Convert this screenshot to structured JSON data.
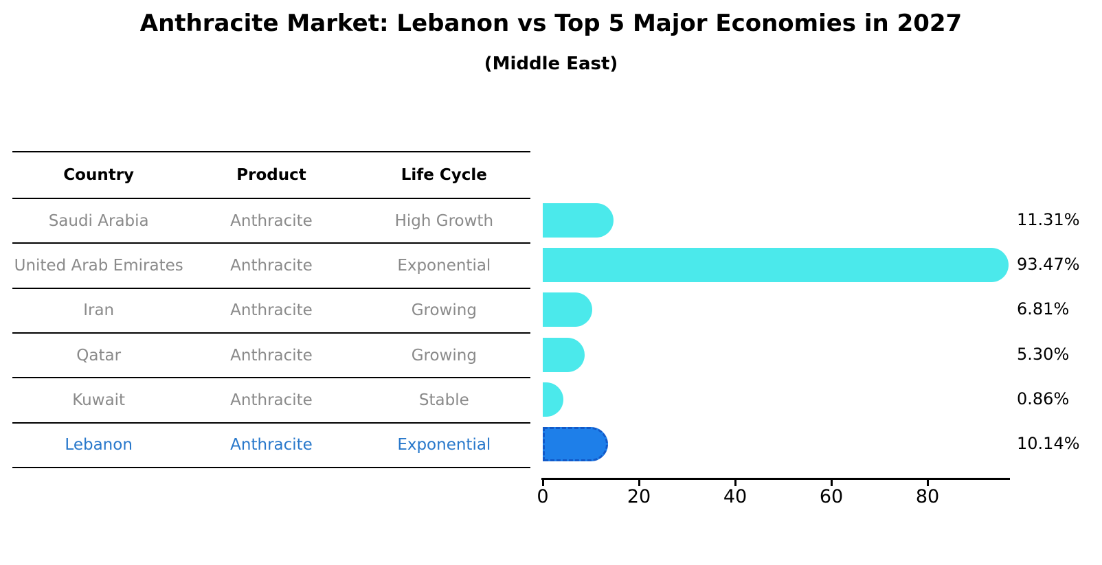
{
  "title": "Anthracite Market: Lebanon vs Top 5 Major Economies in 2027",
  "subtitle": "(Middle East)",
  "table": {
    "headers": [
      "Country",
      "Product",
      "Life Cycle"
    ],
    "rows": [
      {
        "country": "Saudi Arabia",
        "product": "Anthracite",
        "life_cycle": "High Growth",
        "highlight": false
      },
      {
        "country": "United Arab Emirates",
        "product": "Anthracite",
        "life_cycle": "Exponential",
        "highlight": false
      },
      {
        "country": "Iran",
        "product": "Anthracite",
        "life_cycle": "Growing",
        "highlight": false
      },
      {
        "country": "Qatar",
        "product": "Anthracite",
        "life_cycle": "Growing",
        "highlight": false
      },
      {
        "country": "Kuwait",
        "product": "Anthracite",
        "life_cycle": "Stable",
        "highlight": false
      },
      {
        "country": "Lebanon",
        "product": "Anthracite",
        "life_cycle": "Exponential",
        "highlight": true
      }
    ]
  },
  "chart_data": {
    "type": "bar",
    "orientation": "horizontal",
    "title": "Anthracite Market: Lebanon vs Top 5 Major Economies in 2027",
    "subtitle": "(Middle East)",
    "categories": [
      "Saudi Arabia",
      "United Arab Emirates",
      "Iran",
      "Qatar",
      "Kuwait",
      "Lebanon"
    ],
    "values": [
      11.31,
      93.47,
      6.81,
      5.3,
      0.86,
      10.14
    ],
    "value_labels": [
      "11.31%",
      "93.47%",
      "6.81%",
      "5.30%",
      "0.86%",
      "10.14%"
    ],
    "xticks": [
      0,
      20,
      40,
      60,
      80
    ],
    "xlim": [
      0,
      97
    ],
    "grid": false,
    "highlight_category": "Lebanon",
    "colors": {
      "bar_default": "#4be9eb",
      "bar_highlight_fill": "#1e7fe9",
      "bar_highlight_border": "#1259c8",
      "highlight_text": "#2878cb",
      "row_text": "#8a8a8a",
      "axis_text": "#000000"
    }
  }
}
